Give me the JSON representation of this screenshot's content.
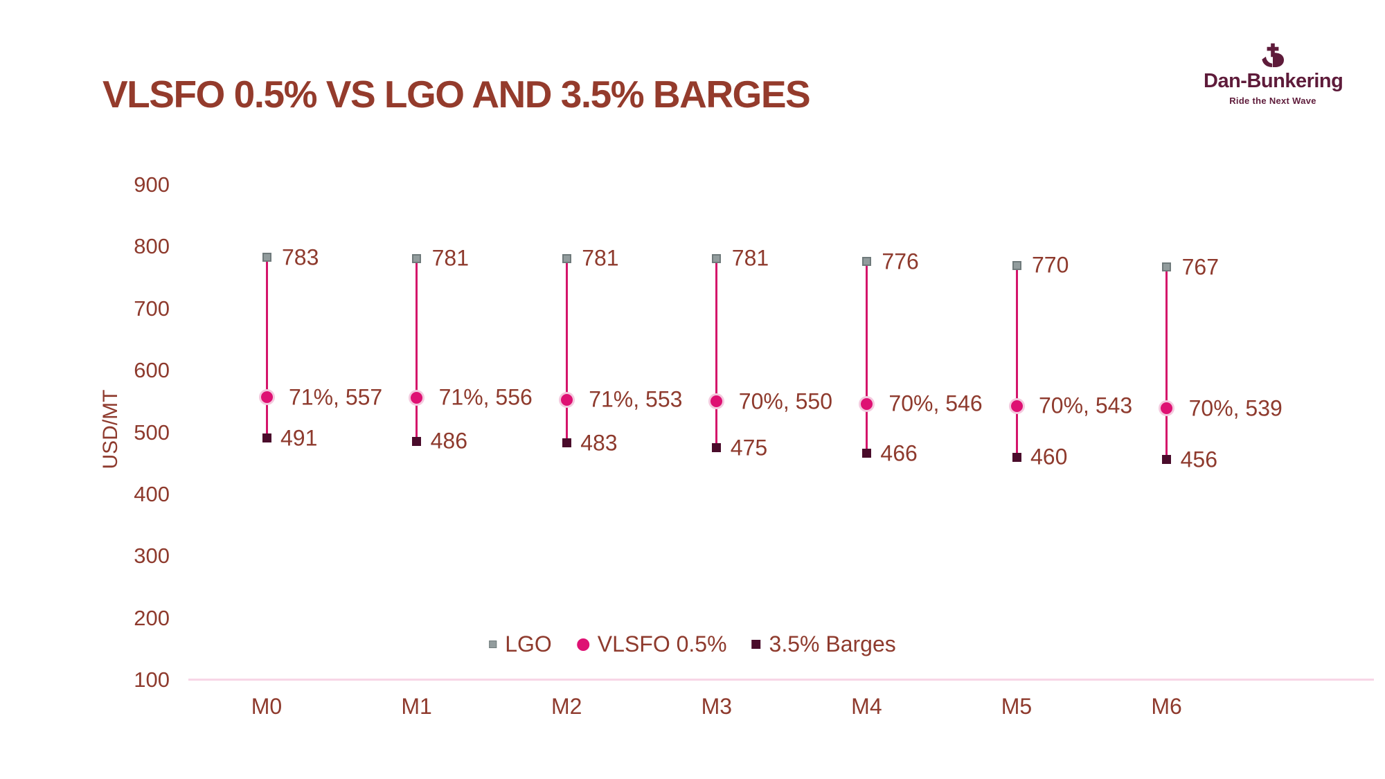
{
  "header": {
    "title": "VLSFO 0.5% VS LGO AND 3.5% BARGES"
  },
  "logo": {
    "brand": "Dan-Bunkering",
    "tagline": "Ride the Next Wave"
  },
  "colors": {
    "title_text": "#943b2c",
    "chart_text": "#8e3a2d",
    "logo_burgundy": "#5e1b3a",
    "connector_pink": "#d4146a",
    "axis_line_pink": "#f8d6e6"
  },
  "chart_data": {
    "type": "line",
    "subtype": "vertical high-low connectors with point markers (stock style)",
    "title": "VLSFO 0.5% VS LGO AND 3.5% BARGES",
    "ylabel": "USD/MT",
    "ylim": [
      100,
      900
    ],
    "yticks": [
      900,
      800,
      700,
      600,
      500,
      400,
      300,
      200,
      100
    ],
    "categories": [
      "M0",
      "M1",
      "M2",
      "M3",
      "M4",
      "M5",
      "M6"
    ],
    "grid": false,
    "legend_position": "bottom-center-inside",
    "connector_color": "#d4146a",
    "axis_line_color": "#f8d6e6",
    "label_color": "#8e3a2d",
    "series": [
      {
        "name": "LGO",
        "marker": "square",
        "color": "#929c9d",
        "border_color": "#6f7a7b",
        "values": [
          783,
          781,
          781,
          781,
          776,
          770,
          767
        ],
        "data_labels": [
          "783",
          "781",
          "781",
          "781",
          "776",
          "770",
          "767"
        ]
      },
      {
        "name": "VLSFO 0.5%",
        "marker": "circle",
        "color": "#de1173",
        "border_color": "#f4c9de",
        "values": [
          557,
          556,
          553,
          550,
          546,
          543,
          539
        ],
        "data_labels": [
          "71%, 557",
          "71%, 556",
          "71%, 553",
          "70%, 550",
          "70%, 546",
          "70%, 543",
          "70%, 539"
        ]
      },
      {
        "name": "3.5% Barges",
        "marker": "square",
        "color": "#4a0c2b",
        "border_color": "#4a0c2b",
        "values": [
          491,
          486,
          483,
          475,
          466,
          460,
          456
        ],
        "data_labels": [
          "491",
          "486",
          "483",
          "475",
          "466",
          "460",
          "456"
        ]
      }
    ]
  }
}
